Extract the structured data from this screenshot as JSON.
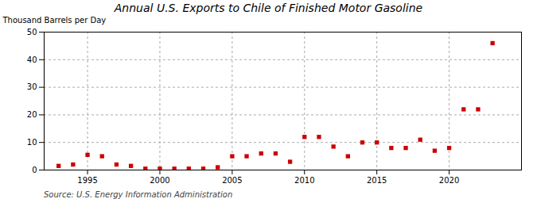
{
  "chart_data": {
    "type": "scatter",
    "title": "Annual U.S. Exports to Chile of Finished Motor Gasoline",
    "y_label": "Thousand Barrels per Day",
    "annotation": "Source: U.S. Energy Information Administration",
    "x": [
      1993,
      1994,
      1995,
      1996,
      1997,
      1998,
      1999,
      2000,
      2001,
      2002,
      2003,
      2004,
      2005,
      2006,
      2007,
      2008,
      2009,
      2010,
      2011,
      2012,
      2013,
      2014,
      2015,
      2016,
      2017,
      2018,
      2019,
      2020,
      2021,
      2022,
      2023
    ],
    "values": [
      1.5,
      2.0,
      5.5,
      5.0,
      2.0,
      1.5,
      0.5,
      0.5,
      0.5,
      0.5,
      0.5,
      1.0,
      5.0,
      5.0,
      6.0,
      6.0,
      3.0,
      12.0,
      12.0,
      8.5,
      5.0,
      10.0,
      10.0,
      8.0,
      8.0,
      11.0,
      7.0,
      8.0,
      22.0,
      22.0,
      46.0
    ],
    "color": "#cc0000",
    "marker": "square",
    "xlim": [
      1992,
      2025
    ],
    "ylim": [
      0,
      50
    ],
    "xticks": [
      1995,
      2000,
      2005,
      2010,
      2015,
      2020
    ],
    "yticks": [
      0,
      10,
      20,
      30,
      40,
      50
    ],
    "grid": true
  }
}
